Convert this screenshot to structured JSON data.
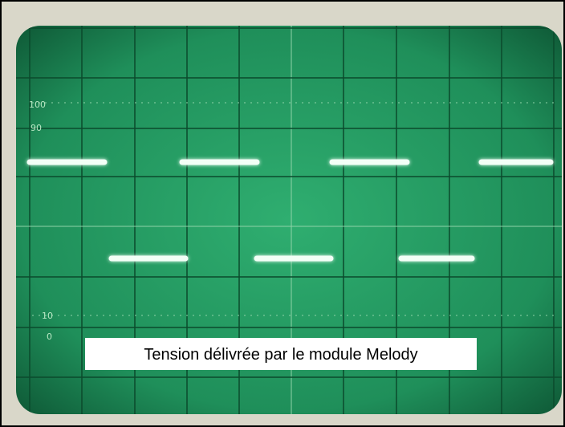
{
  "graticule_labels": [
    "100",
    "90",
    "10",
    "0"
  ],
  "caption": "Tension délivrée par le module Melody"
}
